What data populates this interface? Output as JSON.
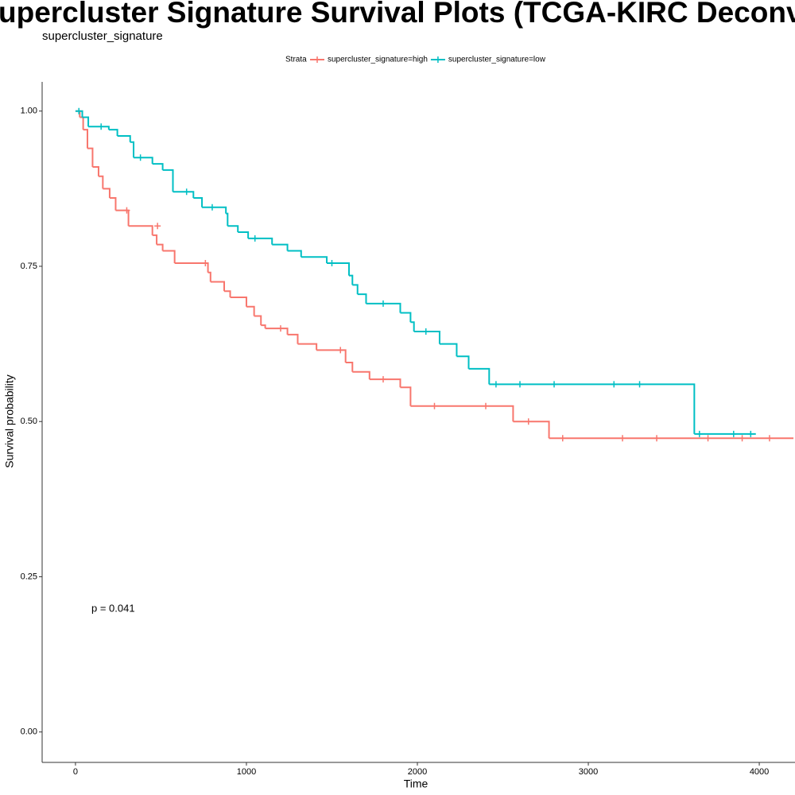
{
  "chart_data": {
    "type": "survival",
    "title": "upercluster Signature Survival Plots (TCGA-KIRC Deconvolve",
    "subtitle": "supercluster_signature",
    "legend_title": "Strata",
    "legend_position": "top",
    "x_label": "Time",
    "y_label": "Survival probability",
    "annotation": "p = 0.041",
    "xlim": [
      -195,
      4209
    ],
    "ylim": [
      -0.049,
      1.047
    ],
    "xticks": [
      0,
      1000,
      2000,
      3000,
      4000
    ],
    "yticks": [
      {
        "value": 0,
        "label": "0.00"
      },
      {
        "value": 0.25,
        "label": "0.25"
      },
      {
        "value": 0.5,
        "label": "0.50"
      },
      {
        "value": 0.75,
        "label": "0.75"
      },
      {
        "value": 1,
        "label": "1.00"
      }
    ],
    "series": [
      {
        "name": "supercluster_signature=high",
        "color": "#f8766d",
        "x": [
          0,
          25,
          45,
          70,
          100,
          135,
          160,
          200,
          235,
          310,
          450,
          475,
          510,
          580,
          775,
          790,
          870,
          905,
          1000,
          1045,
          1085,
          1110,
          1240,
          1300,
          1410,
          1580,
          1620,
          1720,
          1900,
          1960,
          2560,
          2770,
          4200
        ],
        "values": [
          1.0,
          0.99,
          0.97,
          0.94,
          0.91,
          0.895,
          0.875,
          0.86,
          0.84,
          0.815,
          0.8,
          0.785,
          0.775,
          0.755,
          0.74,
          0.725,
          0.71,
          0.7,
          0.685,
          0.67,
          0.655,
          0.65,
          0.64,
          0.625,
          0.615,
          0.595,
          0.58,
          0.568,
          0.555,
          0.525,
          0.5,
          0.473,
          0.473
        ],
        "censor_x": [
          300,
          480,
          760,
          1200,
          1550,
          1800,
          2100,
          2400,
          2650,
          2850,
          3200,
          3400,
          3700,
          3900,
          4060
        ],
        "censor_values": [
          0.84,
          0.815,
          0.755,
          0.65,
          0.615,
          0.568,
          0.525,
          0.525,
          0.5,
          0.473,
          0.473,
          0.473,
          0.473,
          0.473,
          0.473
        ]
      },
      {
        "name": "supercluster_signature=low",
        "color": "#00bfc4",
        "x": [
          0,
          40,
          75,
          195,
          245,
          320,
          340,
          450,
          510,
          570,
          690,
          740,
          880,
          890,
          950,
          1010,
          1150,
          1240,
          1320,
          1470,
          1600,
          1620,
          1650,
          1700,
          1900,
          1960,
          1980,
          2130,
          2230,
          2300,
          2420,
          3620,
          3980
        ],
        "values": [
          1.0,
          0.99,
          0.975,
          0.97,
          0.96,
          0.95,
          0.925,
          0.915,
          0.905,
          0.87,
          0.86,
          0.845,
          0.835,
          0.815,
          0.805,
          0.795,
          0.785,
          0.775,
          0.765,
          0.755,
          0.735,
          0.72,
          0.705,
          0.69,
          0.675,
          0.66,
          0.645,
          0.625,
          0.605,
          0.585,
          0.56,
          0.48,
          0.48
        ],
        "censor_x": [
          20,
          150,
          380,
          650,
          800,
          1050,
          1500,
          1800,
          2050,
          2460,
          2600,
          2800,
          3150,
          3300,
          3650,
          3850,
          3950
        ],
        "censor_values": [
          1.0,
          0.975,
          0.925,
          0.87,
          0.845,
          0.795,
          0.755,
          0.69,
          0.645,
          0.56,
          0.56,
          0.56,
          0.56,
          0.56,
          0.48,
          0.48,
          0.48
        ]
      }
    ]
  }
}
